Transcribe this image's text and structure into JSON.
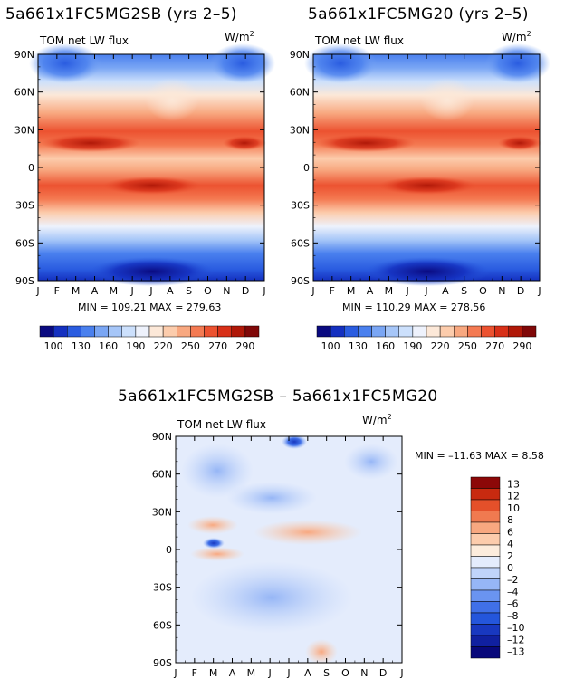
{
  "units_label": "W/m",
  "units_exponent": "2",
  "chart_data": [
    {
      "type": "heatmap",
      "title": "5a661x1FC5MG2SB (yrs 2–5)",
      "subtitle": "TOM net LW flux",
      "x_ticks": [
        "J",
        "F",
        "M",
        "A",
        "M",
        "J",
        "J",
        "A",
        "S",
        "O",
        "N",
        "D",
        "J"
      ],
      "y_ticks": [
        "90N",
        "60N",
        "30N",
        "0",
        "30S",
        "60S",
        "90S"
      ],
      "stats": "MIN = 109.21  MAX = 279.63",
      "colorbar": [
        "100",
        "130",
        "160",
        "190",
        "220",
        "250",
        "270",
        "290"
      ],
      "min": 109.21,
      "max": 279.63
    },
    {
      "type": "heatmap",
      "title": "5a661x1FC5MG20 (yrs 2–5)",
      "subtitle": "TOM net LW flux",
      "x_ticks": [
        "J",
        "F",
        "M",
        "A",
        "M",
        "J",
        "J",
        "A",
        "S",
        "O",
        "N",
        "D",
        "J"
      ],
      "y_ticks": [
        "90N",
        "60N",
        "30N",
        "0",
        "30S",
        "60S",
        "90S"
      ],
      "stats": "MIN = 110.29  MAX = 278.56",
      "colorbar": [
        "100",
        "130",
        "160",
        "190",
        "220",
        "250",
        "270",
        "290"
      ],
      "min": 110.29,
      "max": 278.56
    },
    {
      "type": "heatmap",
      "title": "5a661x1FC5MG2SB – 5a661x1FC5MG20",
      "subtitle": "TOM net LW flux",
      "x_ticks": [
        "J",
        "F",
        "M",
        "A",
        "M",
        "J",
        "J",
        "A",
        "S",
        "O",
        "N",
        "D",
        "J"
      ],
      "y_ticks": [
        "90N",
        "60N",
        "30N",
        "0",
        "30S",
        "60S",
        "90S"
      ],
      "stats": "MIN = –11.63  MAX =    8.58",
      "colorbar": [
        "13",
        "12",
        "10",
        "8",
        "6",
        "4",
        "2",
        "0",
        "–2",
        "–4",
        "–6",
        "–8",
        "–10",
        "–12",
        "–13"
      ],
      "min": -11.63,
      "max": 8.58
    }
  ],
  "colors": {
    "abs_scale": [
      "#0a0a80",
      "#1430c0",
      "#2a5ce0",
      "#4a80ee",
      "#7aa6f4",
      "#a6c6f8",
      "#cce0fc",
      "#eef2fc",
      "#fce8d8",
      "#fcccac",
      "#f8a880",
      "#f47a52",
      "#ec5230",
      "#d83018",
      "#b01808",
      "#800808"
    ],
    "diff_scale": [
      "#08087a",
      "#1020a0",
      "#1838c0",
      "#2456dc",
      "#4070e8",
      "#6a94f0",
      "#96b6f6",
      "#c0d4fa",
      "#e4ecfc",
      "#fcecdc",
      "#fcccac",
      "#f8a880",
      "#f07a50",
      "#e4502a",
      "#c82a10",
      "#8c0808"
    ]
  }
}
